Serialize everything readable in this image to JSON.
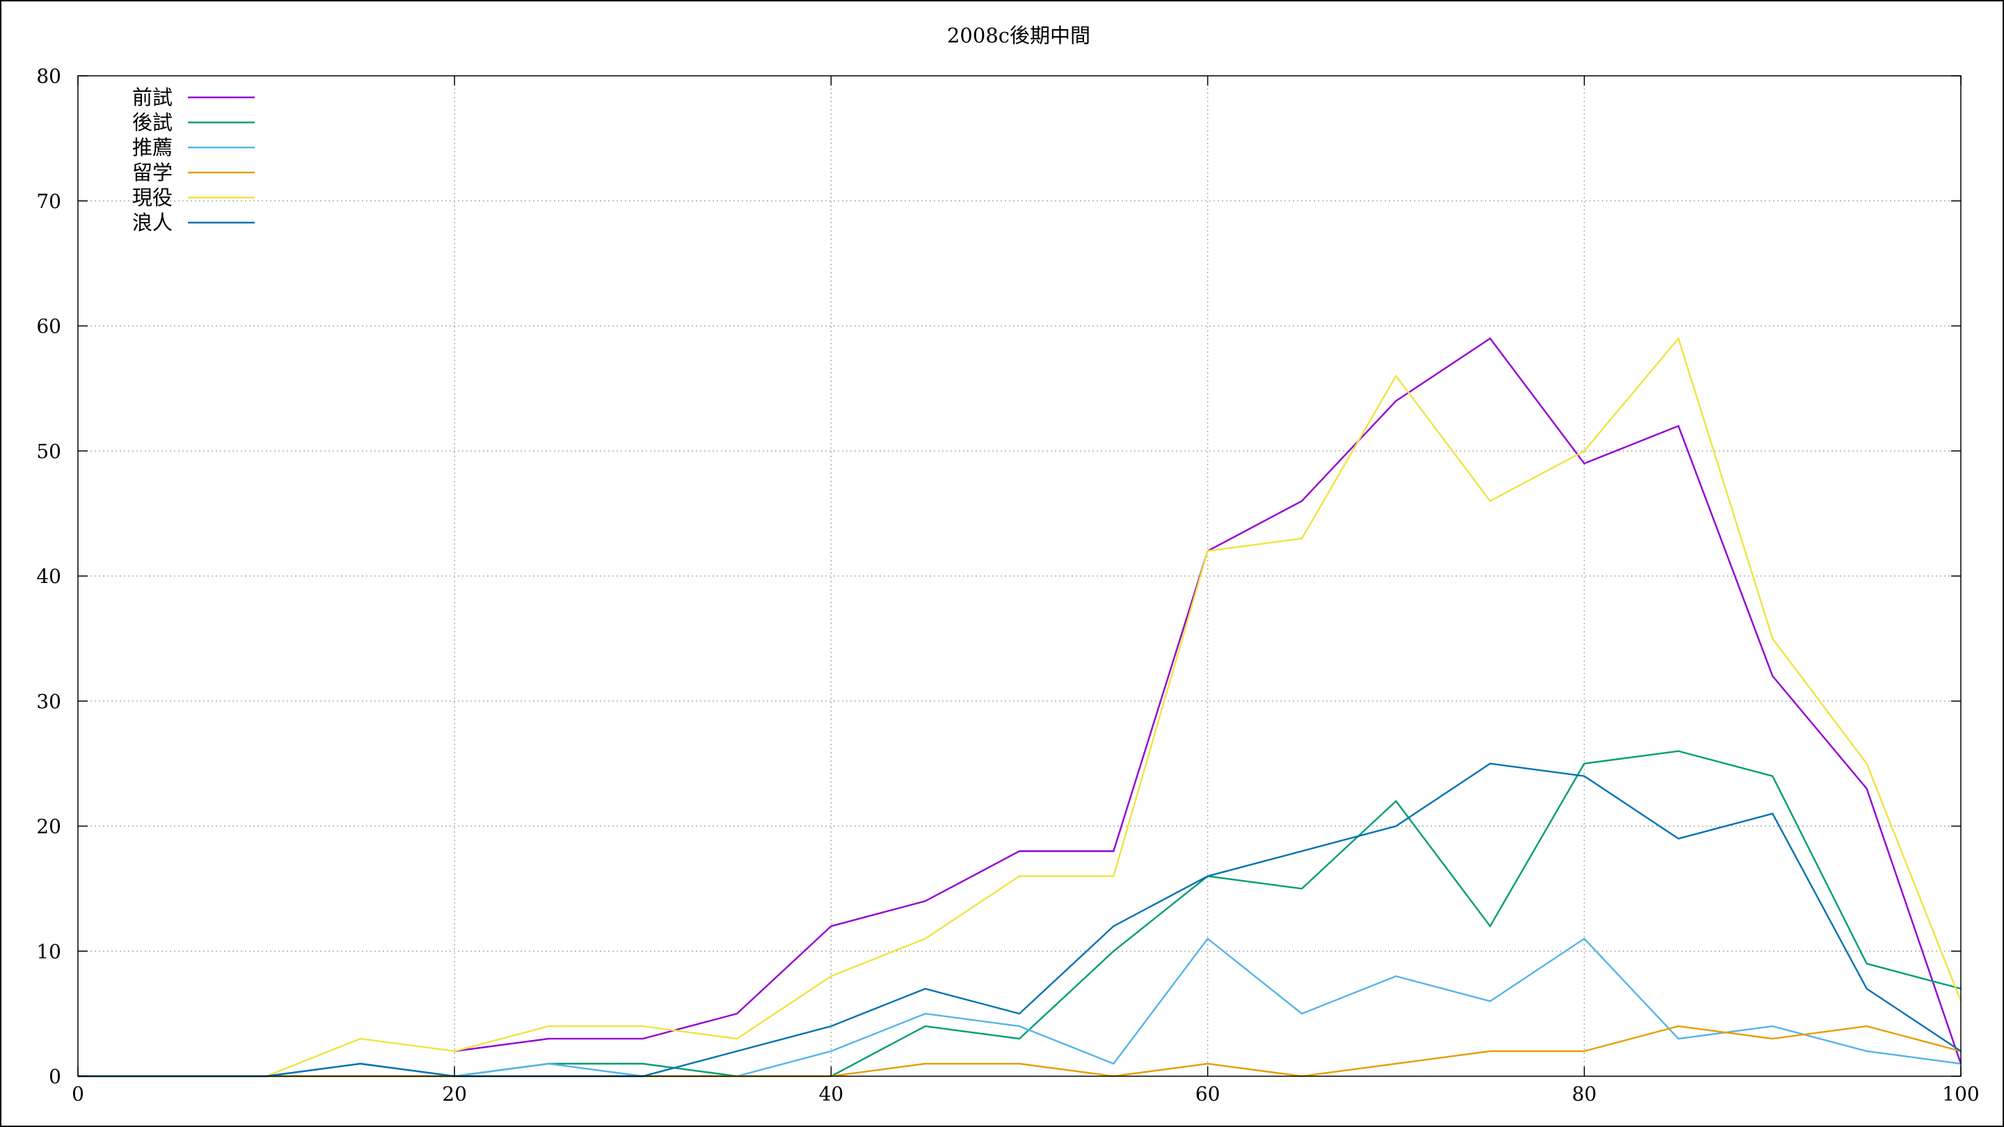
{
  "chart_data": {
    "type": "line",
    "title": "2008c後期中間",
    "xlabel": "",
    "ylabel": "",
    "xlim": [
      0,
      100
    ],
    "ylim": [
      0,
      80
    ],
    "xticks": [
      0,
      20,
      40,
      60,
      80,
      100
    ],
    "yticks": [
      0,
      10,
      20,
      30,
      40,
      50,
      60,
      70,
      80
    ],
    "grid": true,
    "legend_position": "top-left",
    "series": [
      {
        "name": "前試",
        "color": "#9400d3",
        "points": [
          [
            20,
            2
          ],
          [
            25,
            3
          ],
          [
            30,
            3
          ],
          [
            35,
            5
          ],
          [
            40,
            12
          ],
          [
            45,
            14
          ],
          [
            50,
            18
          ],
          [
            55,
            18
          ],
          [
            60,
            42
          ],
          [
            65,
            46
          ],
          [
            70,
            54
          ],
          [
            75,
            59
          ],
          [
            80,
            49
          ],
          [
            85,
            52
          ],
          [
            90,
            32
          ],
          [
            95,
            23
          ],
          [
            100,
            1
          ]
        ]
      },
      {
        "name": "後試",
        "color": "#009e73",
        "points": [
          [
            0,
            0
          ],
          [
            5,
            0
          ],
          [
            10,
            0
          ],
          [
            15,
            0
          ],
          [
            20,
            0
          ],
          [
            25,
            1
          ],
          [
            30,
            1
          ],
          [
            35,
            0
          ],
          [
            40,
            0
          ],
          [
            45,
            4
          ],
          [
            50,
            3
          ],
          [
            55,
            10
          ],
          [
            60,
            16
          ],
          [
            65,
            15
          ],
          [
            70,
            22
          ],
          [
            75,
            12
          ],
          [
            80,
            25
          ],
          [
            85,
            26
          ],
          [
            90,
            24
          ],
          [
            95,
            9
          ],
          [
            100,
            7
          ]
        ]
      },
      {
        "name": "推薦",
        "color": "#56b4e9",
        "points": [
          [
            0,
            0
          ],
          [
            5,
            0
          ],
          [
            10,
            0
          ],
          [
            15,
            1
          ],
          [
            20,
            0
          ],
          [
            25,
            1
          ],
          [
            30,
            0
          ],
          [
            35,
            0
          ],
          [
            40,
            2
          ],
          [
            45,
            5
          ],
          [
            50,
            4
          ],
          [
            55,
            1
          ],
          [
            60,
            11
          ],
          [
            65,
            5
          ],
          [
            70,
            8
          ],
          [
            75,
            6
          ],
          [
            80,
            11
          ],
          [
            85,
            3
          ],
          [
            90,
            4
          ],
          [
            95,
            2
          ],
          [
            100,
            1
          ]
        ]
      },
      {
        "name": "留学",
        "color": "#e69f00",
        "points": [
          [
            0,
            0
          ],
          [
            5,
            0
          ],
          [
            10,
            0
          ],
          [
            15,
            0
          ],
          [
            20,
            0
          ],
          [
            25,
            0
          ],
          [
            30,
            0
          ],
          [
            35,
            0
          ],
          [
            40,
            0
          ],
          [
            45,
            1
          ],
          [
            50,
            1
          ],
          [
            55,
            0
          ],
          [
            60,
            1
          ],
          [
            65,
            0
          ],
          [
            70,
            1
          ],
          [
            75,
            2
          ],
          [
            80,
            2
          ],
          [
            85,
            4
          ],
          [
            90,
            3
          ],
          [
            95,
            4
          ],
          [
            100,
            2
          ]
        ]
      },
      {
        "name": "現役",
        "color": "#f0e442",
        "points": [
          [
            10,
            0
          ],
          [
            15,
            3
          ],
          [
            20,
            2
          ],
          [
            25,
            4
          ],
          [
            30,
            4
          ],
          [
            35,
            3
          ],
          [
            40,
            8
          ],
          [
            45,
            11
          ],
          [
            50,
            16
          ],
          [
            55,
            16
          ],
          [
            60,
            42
          ],
          [
            65,
            43
          ],
          [
            70,
            56
          ],
          [
            75,
            46
          ],
          [
            80,
            50
          ],
          [
            85,
            59
          ],
          [
            90,
            35
          ],
          [
            95,
            25
          ],
          [
            100,
            6
          ]
        ]
      },
      {
        "name": "浪人",
        "color": "#0072b2",
        "points": [
          [
            0,
            0
          ],
          [
            5,
            0
          ],
          [
            10,
            0
          ],
          [
            15,
            1
          ],
          [
            20,
            0
          ],
          [
            25,
            0
          ],
          [
            30,
            0
          ],
          [
            35,
            2
          ],
          [
            40,
            4
          ],
          [
            45,
            7
          ],
          [
            50,
            5
          ],
          [
            55,
            12
          ],
          [
            60,
            16
          ],
          [
            65,
            18
          ],
          [
            70,
            20
          ],
          [
            75,
            25
          ],
          [
            80,
            24
          ],
          [
            85,
            19
          ],
          [
            90,
            21
          ],
          [
            95,
            7
          ],
          [
            100,
            2
          ]
        ]
      }
    ]
  }
}
